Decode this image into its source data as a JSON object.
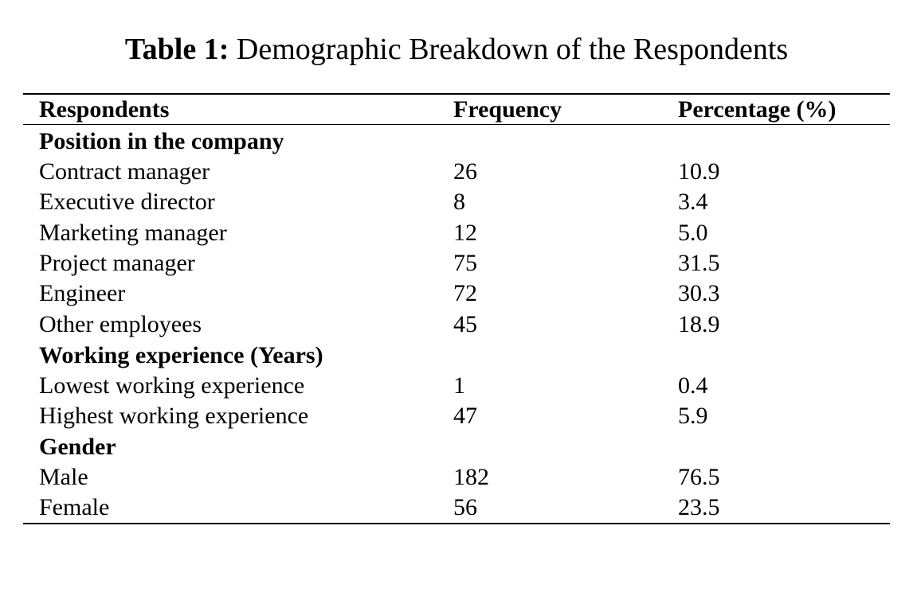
{
  "caption": {
    "label": "Table 1:",
    "text": " Demographic Breakdown of the Respondents"
  },
  "table": {
    "headers": [
      "Respondents",
      "Frequency",
      "Percentage (%)"
    ],
    "rows": [
      {
        "type": "section",
        "label": "Position in the company",
        "frequency": "",
        "percentage": ""
      },
      {
        "type": "data",
        "label": "Contract manager",
        "frequency": "26",
        "percentage": "10.9"
      },
      {
        "type": "data",
        "label": "Executive director",
        "frequency": "8",
        "percentage": "3.4"
      },
      {
        "type": "data",
        "label": "Marketing manager",
        "frequency": "12",
        "percentage": "5.0"
      },
      {
        "type": "data",
        "label": "Project manager",
        "frequency": "75",
        "percentage": "31.5"
      },
      {
        "type": "data",
        "label": "Engineer",
        "frequency": "72",
        "percentage": "30.3"
      },
      {
        "type": "data",
        "label": "Other employees",
        "frequency": "45",
        "percentage": "18.9"
      },
      {
        "type": "section",
        "label": "Working experience (Years)",
        "frequency": "",
        "percentage": ""
      },
      {
        "type": "data",
        "label": "Lowest working experience",
        "frequency": "1",
        "percentage": "0.4"
      },
      {
        "type": "data",
        "label": "Highest working experience",
        "frequency": "47",
        "percentage": "5.9"
      },
      {
        "type": "section",
        "label": "Gender",
        "frequency": "",
        "percentage": ""
      },
      {
        "type": "data",
        "label": "Male",
        "frequency": "182",
        "percentage": "76.5"
      },
      {
        "type": "data",
        "label": "Female",
        "frequency": "56",
        "percentage": "23.5"
      }
    ]
  }
}
